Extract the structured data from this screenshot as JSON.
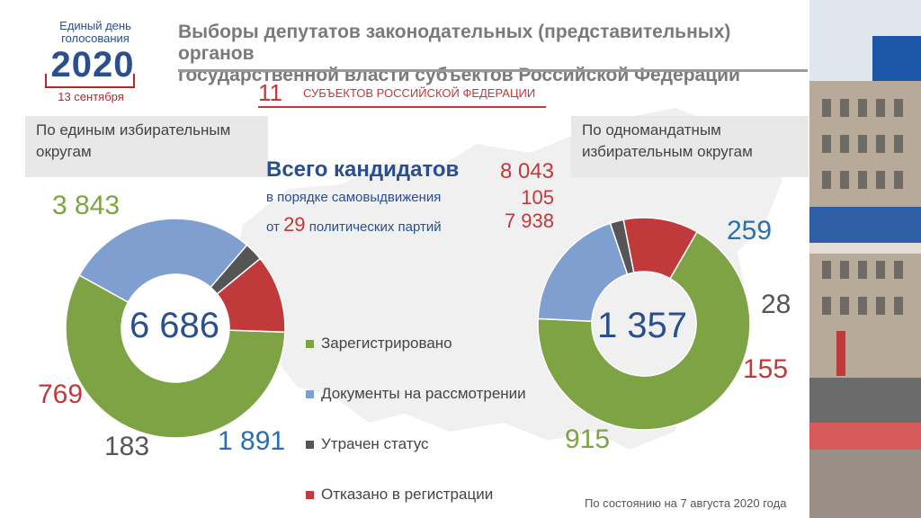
{
  "logo": {
    "line1": "Единый день",
    "line2": "голосования",
    "year": "2020",
    "date": "13 сентября"
  },
  "title": {
    "line1": "Выборы депутатов законодательных (представительных) органов",
    "line2": "государственной власти субъектов Российской Федерации"
  },
  "subjects": {
    "count": "11",
    "label": "СУБЪЕКТОВ РОССИЙСКОЙ ФЕДЕРАЦИИ"
  },
  "sections": {
    "left": "По единым избирательным округам",
    "right": "По одномандатным избирательным округам"
  },
  "totals": {
    "total_label": "Всего кандидатов",
    "total_value": "8 043",
    "self_label": "в порядке самовыдвижения",
    "self_value": "105",
    "party_prefix": "от",
    "party_count": "29",
    "party_suffix": "политических партий",
    "party_value": "7 938"
  },
  "legend": [
    {
      "label": "Зарегистрировано",
      "color": "#7ea344"
    },
    {
      "label": "Документы на рассмотрении",
      "color": "#7f9fd0"
    },
    {
      "label": "Утрачен статус",
      "color": "#555555"
    },
    {
      "label": "Отказано в регистрации",
      "color": "#c0393b"
    }
  ],
  "footnote": "По состоянию на 7 августа 2020 года",
  "colors": {
    "green": "#7ea344",
    "blue": "#7f9fd0",
    "gray": "#555555",
    "red": "#c0393b",
    "navy": "#2a4f8f"
  },
  "chart_data": [
    {
      "type": "pie",
      "center_label": "6 686",
      "categories": [
        "Зарегистрировано",
        "Документы на рассмотрении",
        "Утрачен статус",
        "Отказано в регистрации"
      ],
      "values": [
        3843,
        1891,
        183,
        769
      ],
      "value_labels": [
        "3 843",
        "1 891",
        "183",
        "769"
      ]
    },
    {
      "type": "pie",
      "center_label": "1 357",
      "categories": [
        "Зарегистрировано",
        "Документы на рассмотрении",
        "Утрачен статус",
        "Отказано в регистрации"
      ],
      "values": [
        915,
        259,
        28,
        155
      ],
      "value_labels": [
        "915",
        "259",
        "28",
        "155"
      ]
    }
  ]
}
